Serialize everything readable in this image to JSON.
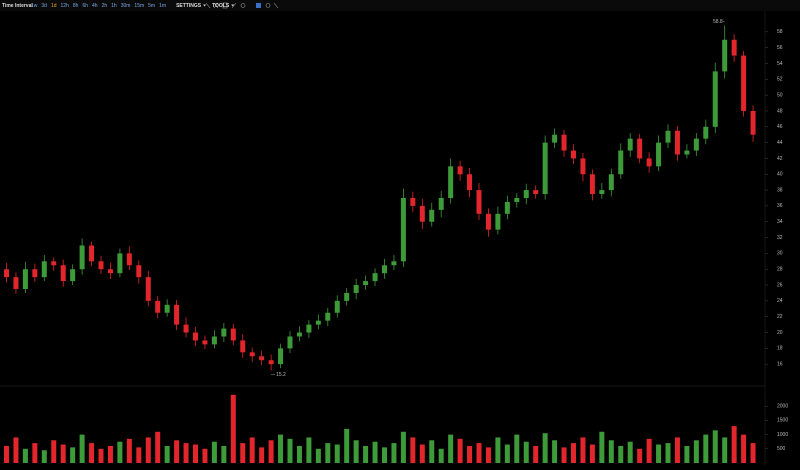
{
  "toolbar": {
    "title": "Time Interval",
    "intervals": [
      "1w",
      "3d",
      "1d",
      "12h",
      "8h",
      "6h",
      "4h",
      "2h",
      "1h",
      "30m",
      "15m",
      "5m",
      "1m"
    ],
    "active_interval": "1d",
    "settings": "SETTINGS",
    "tools": "TOOLS"
  },
  "chart_data": {
    "type": "candlestick",
    "open": [
      28,
      27,
      25.5,
      28,
      27,
      29,
      28.5,
      26.5,
      28,
      31,
      29,
      28,
      27.5,
      30,
      28.5,
      27,
      24,
      22.5,
      23.5,
      21,
      20,
      19,
      18.5,
      19.5,
      20.5,
      19,
      17.5,
      17,
      16.5,
      16,
      18,
      19.5,
      20,
      21,
      21.5,
      22.5,
      24,
      25,
      26,
      26.5,
      27.5,
      28.5,
      29,
      37,
      36,
      34,
      35.5,
      37,
      41,
      40,
      38,
      35,
      33,
      35,
      36.5,
      37,
      38,
      37.5,
      44,
      45,
      43,
      42,
      40,
      37.5,
      38,
      40,
      43,
      44.5,
      42,
      41,
      44,
      45.5,
      42.5,
      43,
      44.5,
      46,
      53,
      57,
      55,
      48
    ],
    "high": [
      28.8,
      27.6,
      28.9,
      28.7,
      29.8,
      29.5,
      29.2,
      28.6,
      31.9,
      31.5,
      29.7,
      28.8,
      30.6,
      30.9,
      29.1,
      27.8,
      24.6,
      24.2,
      24.1,
      21.9,
      20.7,
      19.6,
      20.3,
      21.2,
      21.1,
      19.8,
      18.1,
      17.7,
      17.2,
      18.6,
      20.2,
      20.8,
      21.6,
      22.3,
      23.1,
      24.7,
      25.6,
      26.8,
      27.2,
      28.1,
      29.3,
      29.8,
      38.2,
      37.8,
      36.9,
      36.4,
      37.9,
      42,
      41.7,
      40.8,
      38.9,
      35.7,
      35.9,
      37.3,
      37.6,
      38.8,
      38.6,
      44.9,
      45.8,
      45.6,
      43.8,
      42.7,
      40.6,
      38.9,
      40.7,
      43.9,
      45.2,
      45.1,
      42.8,
      44.9,
      46.3,
      46.1,
      43.8,
      45.2,
      46.9,
      54.1,
      58.8,
      57.7,
      55.6,
      48.7
    ],
    "low": [
      26.3,
      24.9,
      25,
      26.4,
      26.5,
      27.8,
      25.8,
      26,
      27.3,
      28.4,
      27.4,
      26.8,
      27,
      27.9,
      26.2,
      23.3,
      21.8,
      22,
      20.3,
      19.4,
      18.3,
      17.9,
      18,
      18.8,
      18.4,
      16.8,
      16.3,
      15.9,
      15.2,
      15.5,
      17.4,
      18.9,
      19.3,
      20.4,
      20.8,
      21.9,
      23.4,
      24.2,
      25.4,
      25.9,
      26.8,
      27.9,
      28.3,
      35.2,
      33.1,
      33.4,
      34.6,
      36.3,
      39.2,
      37.1,
      34.2,
      32.1,
      32.4,
      34.3,
      35.8,
      36.2,
      36.9,
      36.8,
      43.3,
      42.2,
      41.3,
      39.1,
      36.7,
      36.9,
      37.2,
      39.4,
      42.2,
      41.4,
      40.2,
      40.4,
      43.3,
      41.7,
      42,
      42.3,
      43.8,
      45.2,
      52.1,
      54.2,
      47.3,
      44.1
    ],
    "close": [
      27,
      25.5,
      28,
      27,
      29,
      28.5,
      26.5,
      28,
      31,
      29,
      28,
      27.5,
      30,
      28.5,
      27,
      24,
      22.5,
      23.5,
      21,
      20,
      19,
      18.5,
      19.5,
      20.5,
      19,
      17.5,
      17,
      16.5,
      16,
      18,
      19.5,
      20,
      21,
      21.5,
      22.5,
      24,
      25,
      26,
      26.5,
      27.5,
      28.5,
      29,
      37,
      36,
      34,
      35.5,
      37,
      41,
      40,
      38,
      35,
      33,
      35,
      36.5,
      37,
      38,
      37.5,
      44,
      45,
      43,
      42,
      40,
      37.5,
      38,
      40,
      43,
      44.5,
      42,
      41,
      44,
      45.5,
      42.5,
      43,
      44.5,
      46,
      53,
      57,
      55,
      48,
      45
    ],
    "volume": [
      600,
      900,
      500,
      700,
      450,
      800,
      650,
      550,
      1000,
      700,
      500,
      600,
      750,
      850,
      550,
      900,
      1100,
      600,
      800,
      700,
      650,
      500,
      750,
      600,
      2400,
      700,
      900,
      550,
      800,
      1000,
      850,
      600,
      900,
      500,
      700,
      650,
      1200,
      800,
      600,
      750,
      550,
      700,
      1100,
      900,
      650,
      800,
      500,
      1000,
      850,
      600,
      700,
      550,
      900,
      650,
      1000,
      750,
      600,
      1050,
      800,
      550,
      700,
      900,
      650,
      1100,
      800,
      600,
      750,
      500,
      850,
      650,
      700,
      900,
      600,
      800,
      1000,
      1150,
      900,
      1300,
      1000,
      700
    ],
    "up_color": "#3e9b3a",
    "down_color": "#e2262b",
    "ylim": [
      14,
      60
    ],
    "yticks": [
      16,
      18,
      20,
      22,
      24,
      26,
      28,
      30,
      32,
      34,
      36,
      38,
      40,
      42,
      44,
      46,
      48,
      50,
      52,
      54,
      56,
      58
    ],
    "volume_ylim": [
      0,
      2500
    ],
    "volume_yticks": [
      500,
      1000,
      1500,
      2000
    ],
    "high_marker_index": 76,
    "low_marker_index": 28
  }
}
